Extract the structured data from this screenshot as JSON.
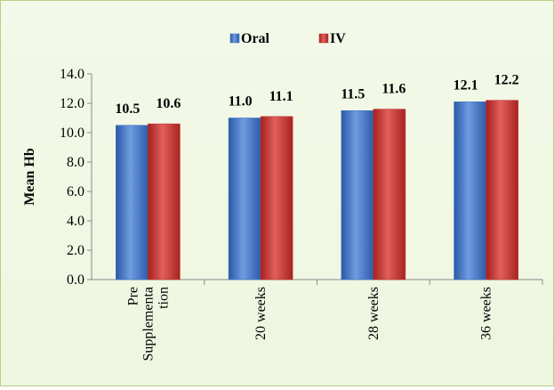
{
  "chart_data": {
    "type": "bar",
    "title": "",
    "xlabel": "",
    "ylabel": "Mean Hb",
    "ylim": [
      0,
      14
    ],
    "yticks": [
      "0.0",
      "2.0",
      "4.0",
      "6.0",
      "8.0",
      "10.0",
      "12.0",
      "14.0"
    ],
    "categories": [
      [
        "Pre",
        "Supplementa",
        "tion"
      ],
      [
        "20 weeks"
      ],
      [
        "28 weeks"
      ],
      [
        "36 weeks"
      ]
    ],
    "series": [
      {
        "name": "Oral",
        "values": [
          10.5,
          11.0,
          11.5,
          12.1
        ],
        "labels": [
          "10.5",
          "11.0",
          "11.5",
          "12.1"
        ],
        "color": "#3a6fc4"
      },
      {
        "name": "IV",
        "values": [
          10.6,
          11.1,
          11.6,
          12.2
        ],
        "labels": [
          "10.6",
          "11.1",
          "11.6",
          "12.2"
        ],
        "color": "#c0312e"
      }
    ],
    "legend_position": "top",
    "grid": false
  }
}
